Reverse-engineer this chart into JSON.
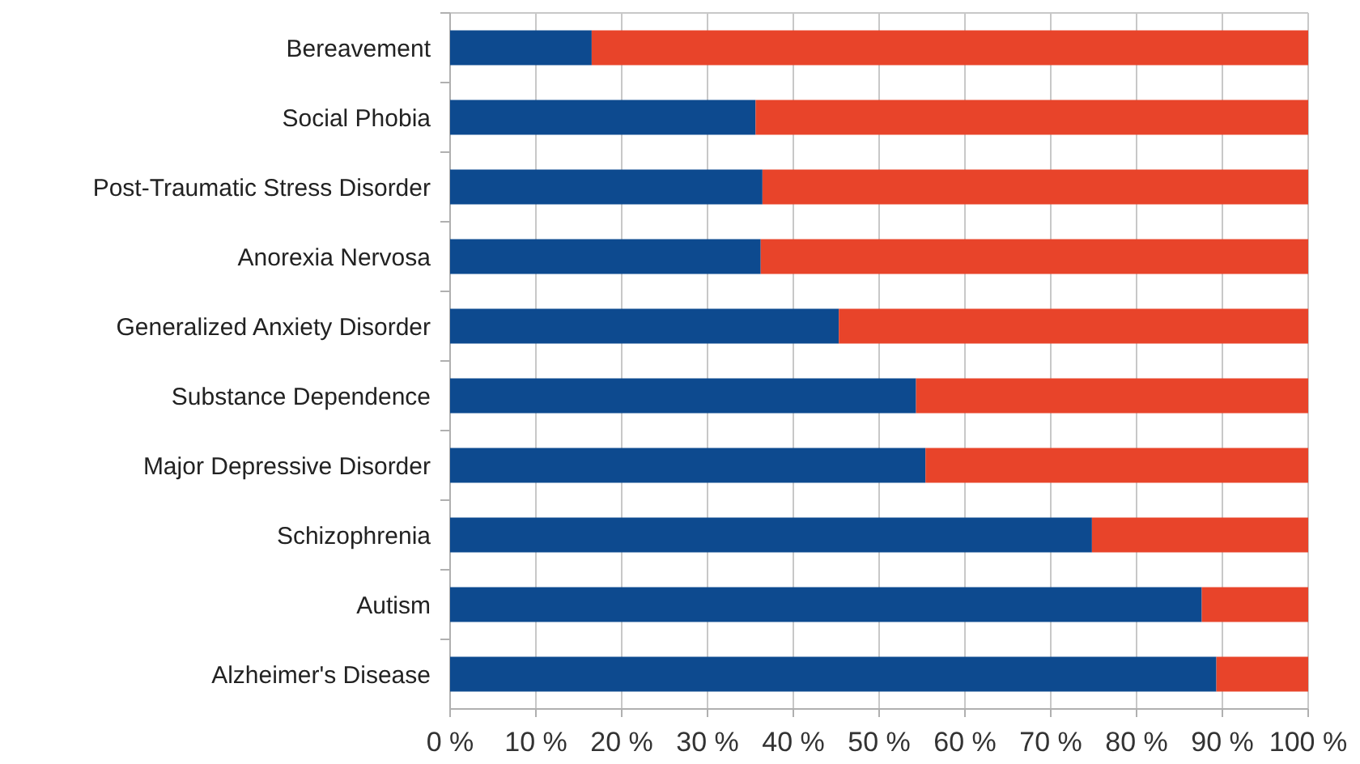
{
  "chart_data": {
    "type": "bar",
    "orientation": "horizontal",
    "stacked": true,
    "categories": [
      "Bereavement",
      "Social Phobia",
      "Post-Traumatic Stress Disorder",
      "Anorexia Nervosa",
      "Generalized Anxiety Disorder",
      "Substance Dependence",
      "Major Depressive Disorder",
      "Schizophrenia",
      "Autism",
      "Alzheimer's Disease"
    ],
    "series": [
      {
        "color": "#0d4a8f",
        "values": [
          16.5,
          35.6,
          36.4,
          36.2,
          45.3,
          54.3,
          55.4,
          74.8,
          87.6,
          89.3
        ]
      },
      {
        "color": "#e8442a",
        "values": [
          83.5,
          64.4,
          63.6,
          63.8,
          54.7,
          45.7,
          44.6,
          25.2,
          12.4,
          10.7
        ]
      }
    ],
    "xlim": [
      0,
      100
    ],
    "xticks": [
      {
        "value": 0,
        "label": "0 %"
      },
      {
        "value": 10,
        "label": "10 %"
      },
      {
        "value": 20,
        "label": "20 %"
      },
      {
        "value": 30,
        "label": "30 %"
      },
      {
        "value": 40,
        "label": "40 %"
      },
      {
        "value": 50,
        "label": "50 %"
      },
      {
        "value": 60,
        "label": "60 %"
      },
      {
        "value": 70,
        "label": "70 %"
      },
      {
        "value": 80,
        "label": "80 %"
      },
      {
        "value": 90,
        "label": "90 %"
      },
      {
        "value": 100,
        "label": "100 %"
      }
    ],
    "grid": "x"
  }
}
